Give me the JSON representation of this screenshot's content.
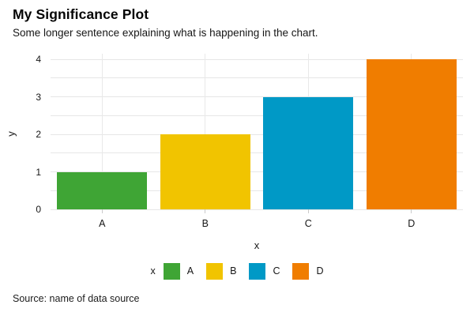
{
  "header": {
    "title": "My Significance Plot",
    "subtitle": "Some longer sentence explaining what is happening in the chart."
  },
  "footer": {
    "source": "Source: name of data source"
  },
  "chart_data": {
    "type": "bar",
    "title": "My Significance Plot",
    "subtitle": "Some longer sentence explaining what is happening in the chart.",
    "categories": [
      "A",
      "B",
      "C",
      "D"
    ],
    "values": [
      1,
      2,
      3,
      4
    ],
    "bar_colors": [
      "#3fa535",
      "#f1c400",
      "#0099c6",
      "#f07d00"
    ],
    "xlabel": "x",
    "ylabel": "y",
    "ylim": [
      0,
      4
    ],
    "y_ticks": [
      0,
      1,
      2,
      3,
      4
    ],
    "grid": "on",
    "grid_step": 0.5,
    "gridline_color": "#e6e6e6",
    "legend": {
      "position": "bottom",
      "title": "x",
      "entries": [
        "A",
        "B",
        "C",
        "D"
      ]
    },
    "source": "Source: name of data source"
  }
}
